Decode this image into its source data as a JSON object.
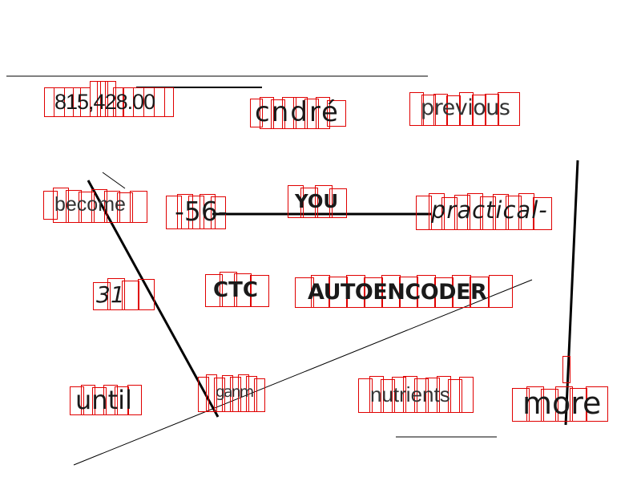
{
  "words": [
    {
      "id": "w1",
      "text": "815,428.00"
    },
    {
      "id": "w2",
      "text": "cndré"
    },
    {
      "id": "w3",
      "text": "previous"
    },
    {
      "id": "w4",
      "text": "become"
    },
    {
      "id": "w5",
      "text": "-56-"
    },
    {
      "id": "w6",
      "text": "YOU"
    },
    {
      "id": "w7",
      "text": "practical-"
    },
    {
      "id": "w8",
      "text": "31"
    },
    {
      "id": "w9",
      "text": "CTC"
    },
    {
      "id": "w10",
      "text": "AUTOENCODER"
    },
    {
      "id": "w11",
      "text": "until"
    },
    {
      "id": "w12",
      "text": "ganm"
    },
    {
      "id": "w13",
      "text": "nutrients"
    },
    {
      "id": "w14",
      "text": "more"
    }
  ],
  "colors": {
    "box_outline": "#e00000",
    "text": "#1a1a1a",
    "line": "#000000",
    "background": "#ffffff"
  }
}
